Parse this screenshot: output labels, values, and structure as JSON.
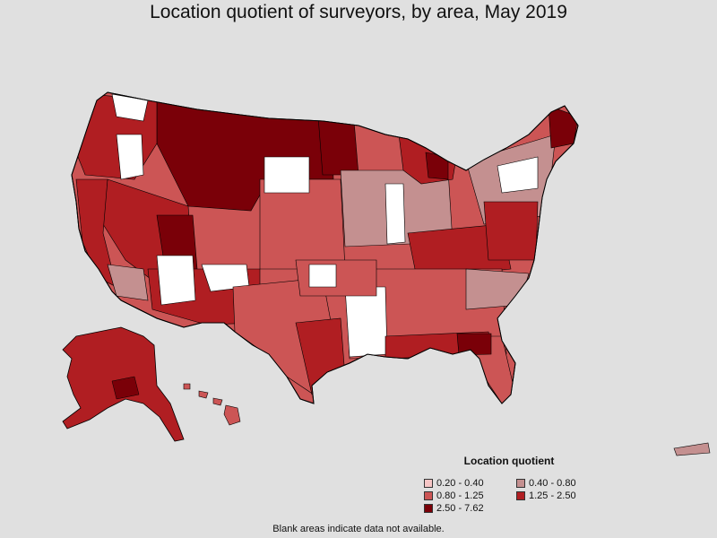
{
  "title": "Location quotient of surveyors, by area, May 2019",
  "legend": {
    "title": "Location quotient",
    "items": [
      {
        "label": "0.20 - 0.40",
        "color": "#f7c6c6"
      },
      {
        "label": "0.40 - 0.80",
        "color": "#c49090"
      },
      {
        "label": "0.80 - 1.25",
        "color": "#cc5555"
      },
      {
        "label": "1.25 - 2.50",
        "color": "#b01e22"
      },
      {
        "label": "2.50 - 7.62",
        "color": "#7a0008"
      }
    ]
  },
  "colors": {
    "background": "#e0e0e0",
    "no_data": "#ffffff",
    "outline": "#000000"
  },
  "footnote": "Blank areas indicate data not available."
}
